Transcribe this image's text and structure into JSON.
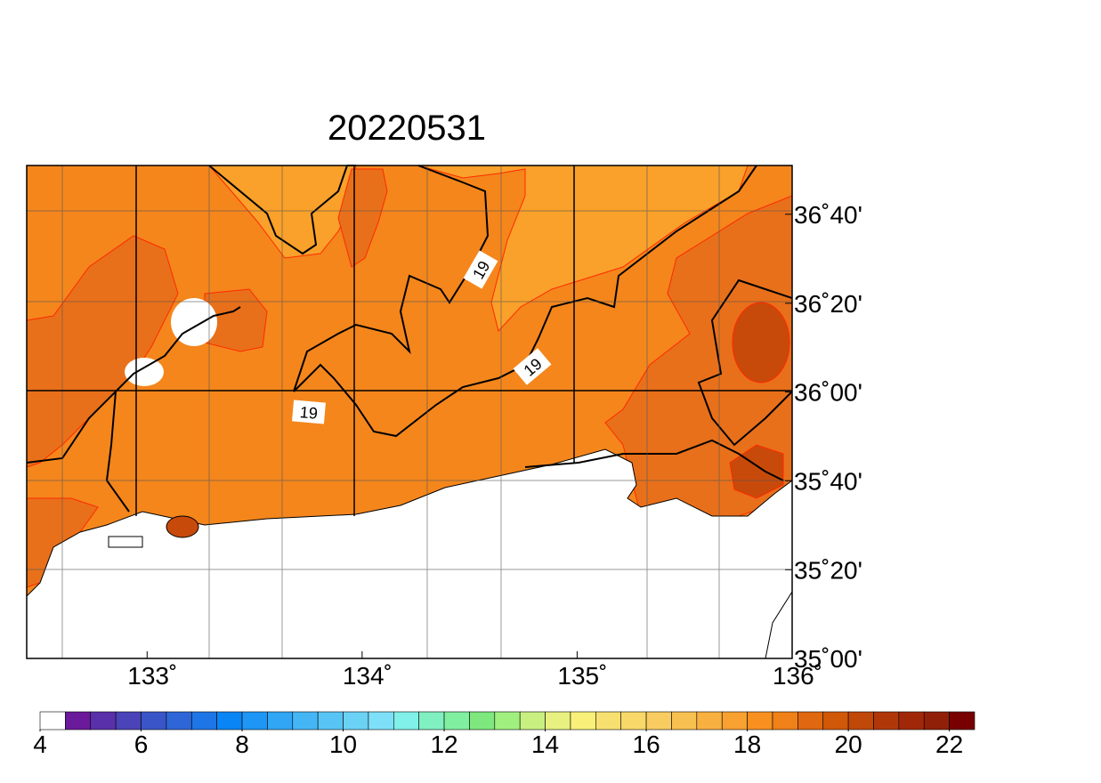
{
  "map": {
    "title": "20220531",
    "xlim": [
      132.44,
      136
    ],
    "ylim": [
      35,
      36.85
    ],
    "xticks": [
      {
        "value": 133,
        "label": "133˚"
      },
      {
        "value": 134,
        "label": "134˚"
      },
      {
        "value": 135,
        "label": "135˚"
      },
      {
        "value": 136,
        "label": "136˚"
      }
    ],
    "yticks": [
      {
        "value": 35,
        "label": "35˚00'"
      },
      {
        "value": 35.333,
        "label": "35˚20'"
      },
      {
        "value": 35.667,
        "label": "35˚40'"
      },
      {
        "value": 36,
        "label": "36˚00'"
      },
      {
        "value": 36.333,
        "label": "36˚20'"
      },
      {
        "value": 36.667,
        "label": "36˚40'"
      }
    ],
    "contour_labels": [
      19,
      19,
      19
    ],
    "colorbar": {
      "range": [
        4,
        22.5
      ],
      "ticks": [
        4,
        6,
        8,
        10,
        12,
        14,
        16,
        18,
        20,
        22
      ],
      "colors": [
        "#ffffff",
        "#6a1a9a",
        "#5a30aa",
        "#4b43b8",
        "#3a55c8",
        "#2e66d8",
        "#1e75e6",
        "#0a85f5",
        "#1e96f5",
        "#30a6f5",
        "#45b6f5",
        "#58c4f5",
        "#6bd2f5",
        "#7ee0f8",
        "#80f0e8",
        "#80f0c0",
        "#80f0a0",
        "#7ee87e",
        "#a0f080",
        "#c8f080",
        "#e8f080",
        "#f8f078",
        "#f8e070",
        "#f8d868",
        "#f8cc60",
        "#f8c050",
        "#f8b040",
        "#f8a030",
        "#f89020",
        "#f08018",
        "#e06810",
        "#d05808",
        "#c04808",
        "#b03808",
        "#a02808",
        "#902008",
        "#780000"
      ]
    }
  }
}
